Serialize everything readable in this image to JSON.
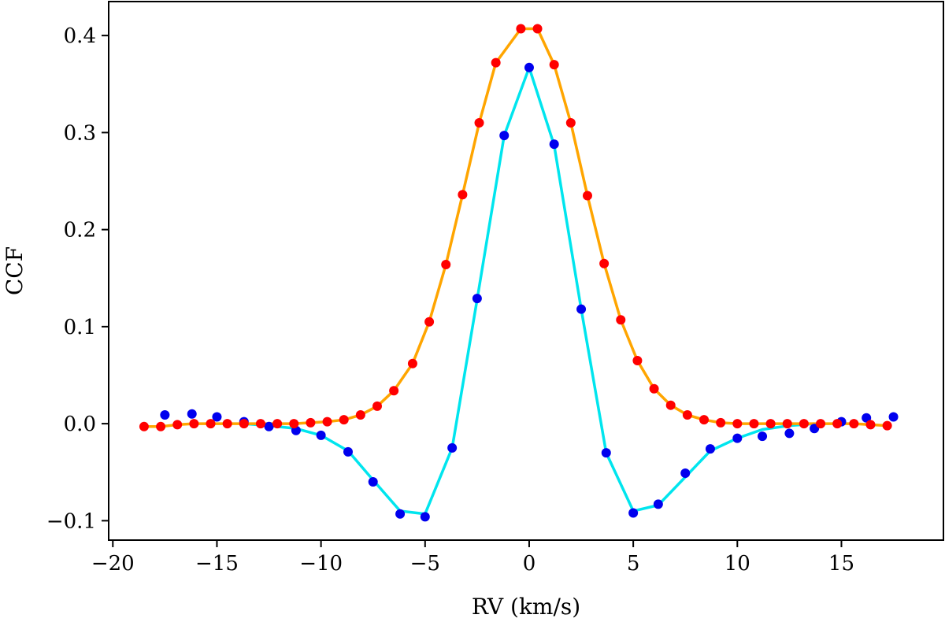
{
  "chart_data": {
    "type": "line",
    "xlabel": "RV (km/s)",
    "ylabel": "CCF",
    "xlim": [
      -20.2,
      19.9
    ],
    "ylim": [
      -0.12,
      0.435
    ],
    "xticks": [
      -20,
      -15,
      -10,
      -5,
      0,
      5,
      10,
      15
    ],
    "xtick_labels": [
      "−20",
      "−15",
      "−10",
      "−5",
      "0",
      "5",
      "10",
      "15"
    ],
    "yticks": [
      -0.1,
      0.0,
      0.1,
      0.2,
      0.3,
      0.4
    ],
    "ytick_labels": [
      "−0.1",
      "0.0",
      "0.1",
      "0.2",
      "0.3",
      "0.4"
    ],
    "grid": false,
    "series": [
      {
        "color_line": "#00e5ee",
        "color_points": "#0000ee",
        "line_x": [
          -13.7,
          -12.5,
          -11.2,
          -10.0,
          -8.7,
          -7.5,
          -6.2,
          -5.0,
          -3.7,
          -2.5,
          -1.2,
          0.0,
          1.2,
          2.5,
          3.7,
          5.0,
          6.2,
          7.5,
          8.7,
          10.0,
          11.2,
          12.5,
          13.7
        ],
        "line_y": [
          0.0,
          -0.002,
          -0.005,
          -0.012,
          -0.028,
          -0.058,
          -0.09,
          -0.093,
          -0.025,
          0.128,
          0.297,
          0.367,
          0.287,
          0.118,
          -0.03,
          -0.09,
          -0.084,
          -0.055,
          -0.028,
          -0.015,
          -0.006,
          -0.002,
          0.0
        ],
        "points_x": [
          -17.5,
          -16.2,
          -15.0,
          -13.7,
          -12.5,
          -11.2,
          -10.0,
          -8.7,
          -7.5,
          -6.2,
          -5.0,
          -3.7,
          -2.5,
          -1.2,
          0.0,
          1.2,
          2.5,
          3.7,
          5.0,
          6.2,
          7.5,
          8.7,
          10.0,
          11.2,
          12.5,
          13.7,
          15.0,
          16.2,
          17.5
        ],
        "points_y": [
          0.009,
          0.01,
          0.007,
          0.002,
          -0.003,
          -0.007,
          -0.012,
          -0.029,
          -0.06,
          -0.093,
          -0.096,
          -0.025,
          0.129,
          0.297,
          0.367,
          0.288,
          0.118,
          -0.03,
          -0.092,
          -0.083,
          -0.051,
          -0.026,
          -0.015,
          -0.013,
          -0.01,
          -0.005,
          0.002,
          0.006,
          0.007
        ]
      },
      {
        "color_line": "#ffa500",
        "color_points": "#ff0000",
        "x": [
          -18.5,
          -17.7,
          -16.9,
          -16.1,
          -15.3,
          -14.5,
          -13.7,
          -12.9,
          -12.1,
          -11.3,
          -10.5,
          -9.7,
          -8.9,
          -8.1,
          -7.3,
          -6.5,
          -5.6,
          -4.8,
          -4.0,
          -3.2,
          -2.4,
          -1.6,
          -0.4,
          0.4,
          1.2,
          2.0,
          2.8,
          3.6,
          4.4,
          5.2,
          6.0,
          6.8,
          7.6,
          8.4,
          9.2,
          10.0,
          10.8,
          11.6,
          12.4,
          13.2,
          14.0,
          14.8,
          15.6,
          16.4,
          17.2
        ],
        "y": [
          -0.003,
          -0.003,
          -0.001,
          0.0,
          0.0,
          0.0,
          0.0,
          0.0,
          0.0,
          0.0,
          0.001,
          0.002,
          0.004,
          0.009,
          0.018,
          0.034,
          0.062,
          0.105,
          0.164,
          0.236,
          0.31,
          0.372,
          0.407,
          0.407,
          0.37,
          0.31,
          0.235,
          0.165,
          0.107,
          0.065,
          0.036,
          0.019,
          0.009,
          0.004,
          0.001,
          0.0,
          0.0,
          0.0,
          0.0,
          0.0,
          0.0,
          0.0,
          0.0,
          -0.001,
          -0.002
        ]
      }
    ]
  }
}
